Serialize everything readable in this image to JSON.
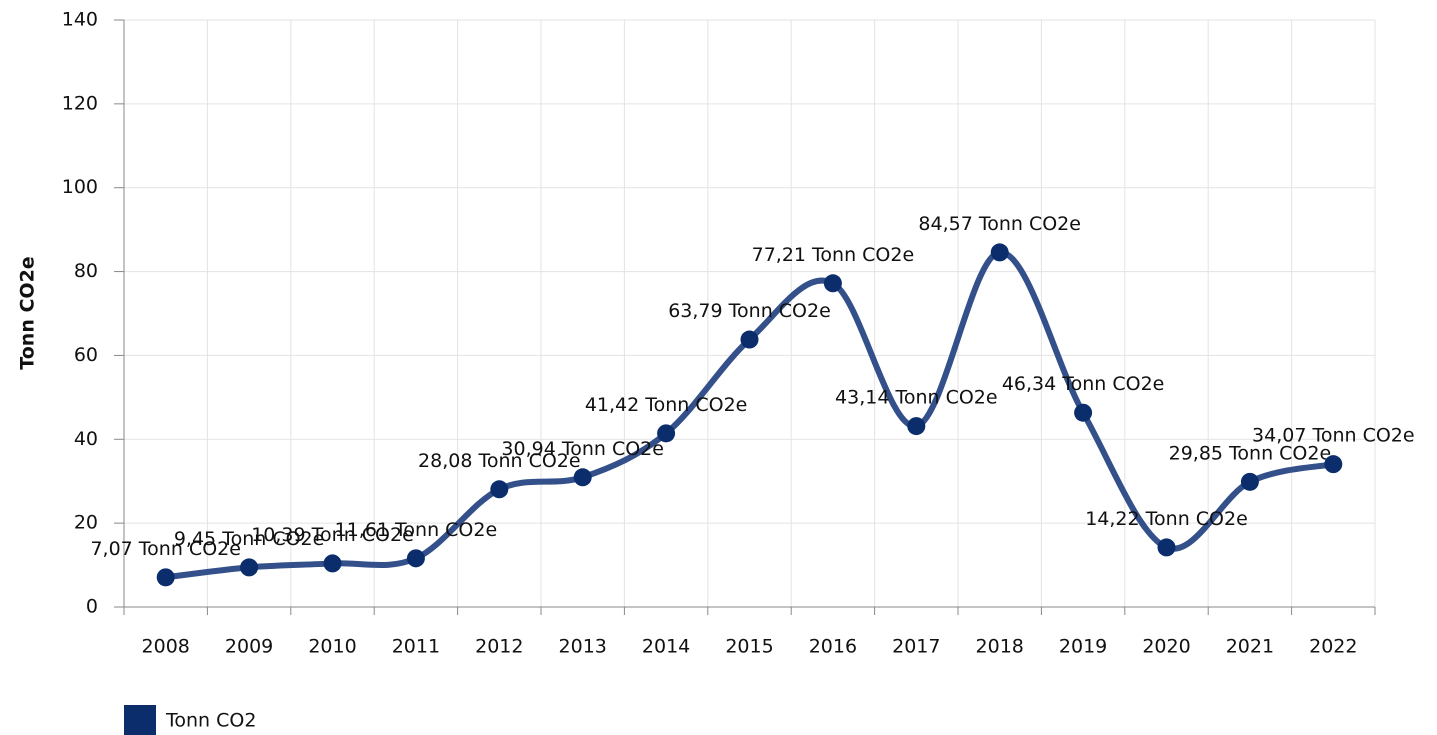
{
  "chart_data": {
    "type": "line",
    "y_label": "Tonn CO2e",
    "categories": [
      "2008",
      "2009",
      "2010",
      "2011",
      "2012",
      "2013",
      "2014",
      "2015",
      "2016",
      "2017",
      "2018",
      "2019",
      "2020",
      "2021",
      "2022"
    ],
    "series": [
      {
        "name": "Tonn CO2",
        "color": "#34508a",
        "marker_color": "#0b2d6b",
        "values": [
          7.07,
          9.45,
          10.39,
          11.61,
          28.08,
          30.94,
          41.42,
          63.79,
          77.21,
          43.14,
          84.57,
          46.34,
          14.22,
          29.85,
          34.07
        ],
        "value_labels": [
          "7,07 Tonn CO2e",
          "9,45 Tonn CO2e",
          "10,39 Tonn CO2e",
          "11,61 Tonn CO2e",
          "28,08 Tonn CO2e",
          "30,94 Tonn CO2e",
          "41,42 Tonn CO2e",
          "63,79 Tonn CO2e",
          "77,21 Tonn CO2e",
          "43,14 Tonn CO2e",
          "84,57 Tonn CO2e",
          "46,34 Tonn CO2e",
          "14,22 Tonn CO2e",
          "29,85 Tonn CO2e",
          "34,07 Tonn CO2e"
        ]
      }
    ],
    "ylim": [
      0,
      140
    ],
    "yticks": [
      0,
      20,
      40,
      60,
      80,
      100,
      120,
      140
    ],
    "grid": true,
    "smooth": true,
    "legend": "bottom-left"
  }
}
